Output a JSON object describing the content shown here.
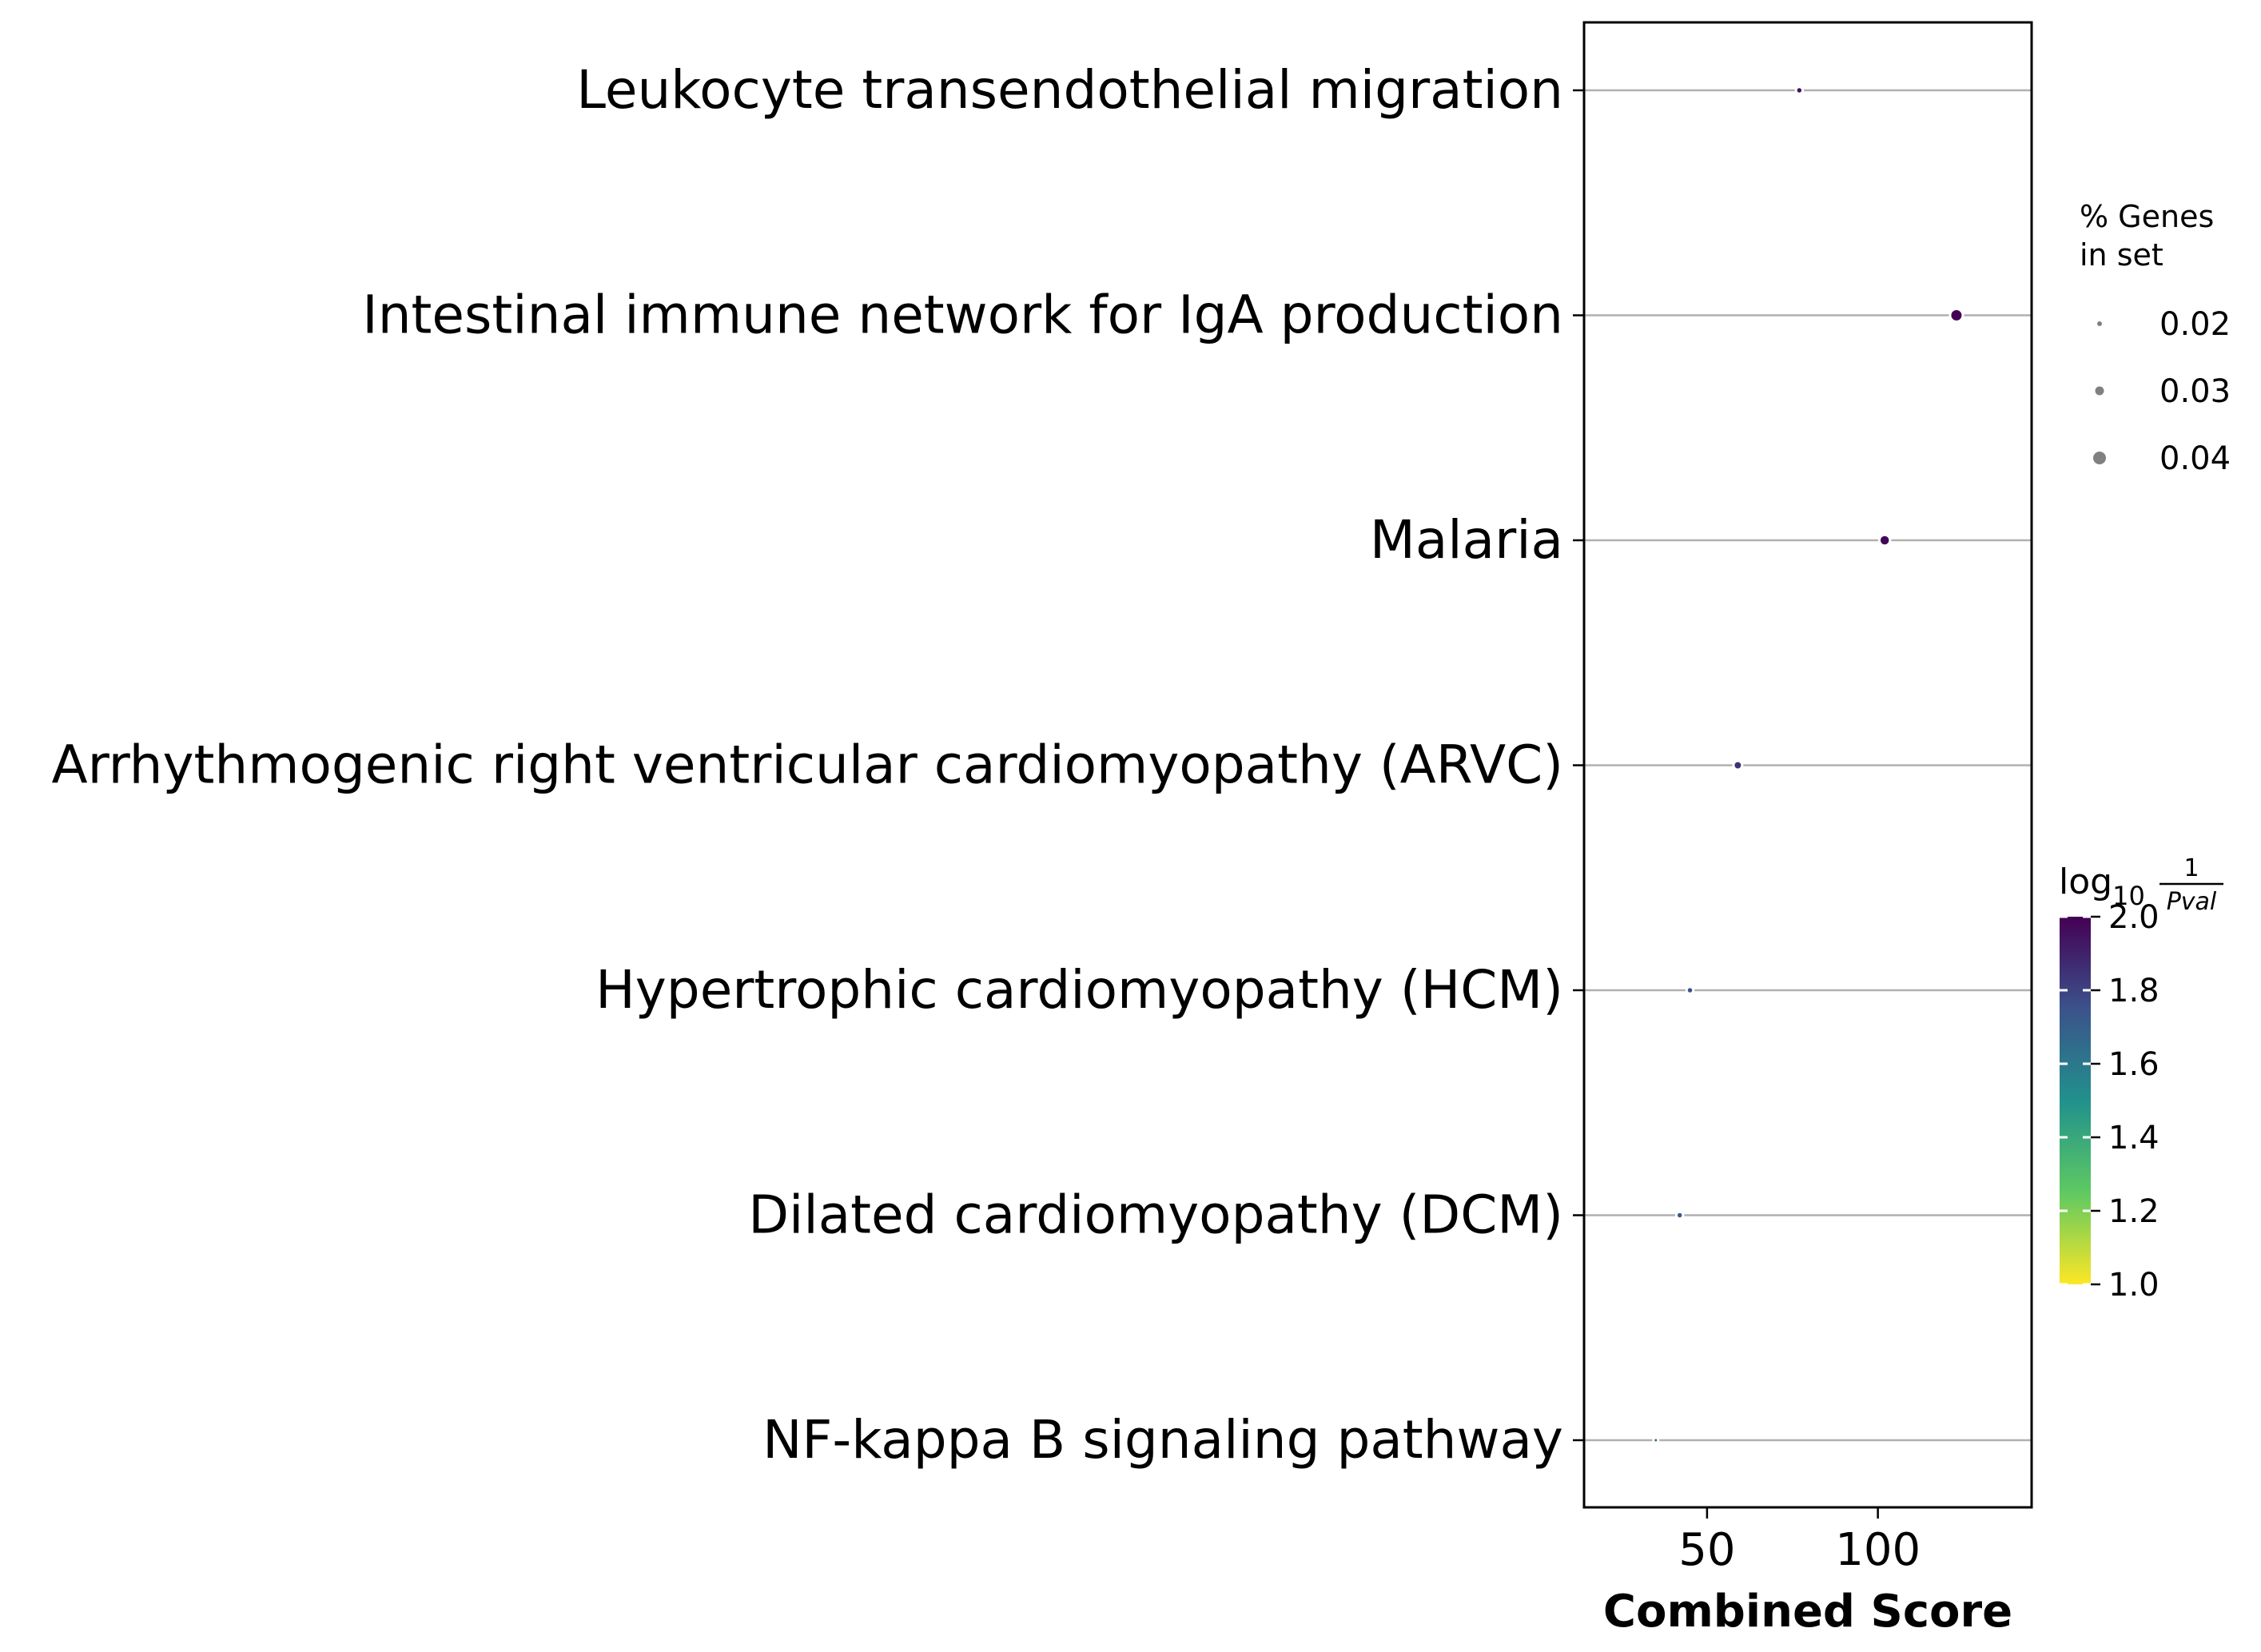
{
  "chart_data": {
    "type": "scatter",
    "categories": [
      "Leukocyte transendothelial migration",
      "Intestinal immune network for IgA production",
      "Malaria",
      "Arrhythmogenic right ventricular cardiomyopathy (ARVC)",
      "Hypertrophic cardiomyopathy (HCM)",
      "Dilated cardiomyopathy (DCM)",
      "NF-kappa B signaling pathway"
    ],
    "combined_score": [
      77,
      123,
      102,
      59,
      45,
      42,
      35
    ],
    "log10_inv_pval": [
      1.95,
      2.0,
      1.98,
      1.85,
      1.75,
      1.73,
      1.65
    ],
    "pct_genes_in_set": [
      0.025,
      0.04,
      0.035,
      0.03,
      0.025,
      0.025,
      0.02
    ],
    "xlabel": "Combined Score",
    "xlim": [
      14,
      145
    ],
    "xticks": [
      50,
      100
    ],
    "grid": "horizontal lines at each category",
    "size_legend": {
      "title_line1": "% Genes",
      "title_line2": "in set",
      "entries": [
        "0.02",
        "0.03",
        "0.04"
      ],
      "values": [
        0.02,
        0.03,
        0.04
      ]
    },
    "colorbar": {
      "title_base": "log",
      "title_sub": "10",
      "frac_num": "1",
      "frac_den": "Pval",
      "range": [
        1.0,
        2.0
      ],
      "ticks": [
        "1.0",
        "1.2",
        "1.4",
        "1.6",
        "1.8",
        "2.0"
      ],
      "tick_values": [
        1.0,
        1.2,
        1.4,
        1.6,
        1.8,
        2.0
      ],
      "colormap": "viridis_r"
    },
    "marker_edge_color": "#ffffff",
    "grid_color": "#b0b0b0"
  }
}
